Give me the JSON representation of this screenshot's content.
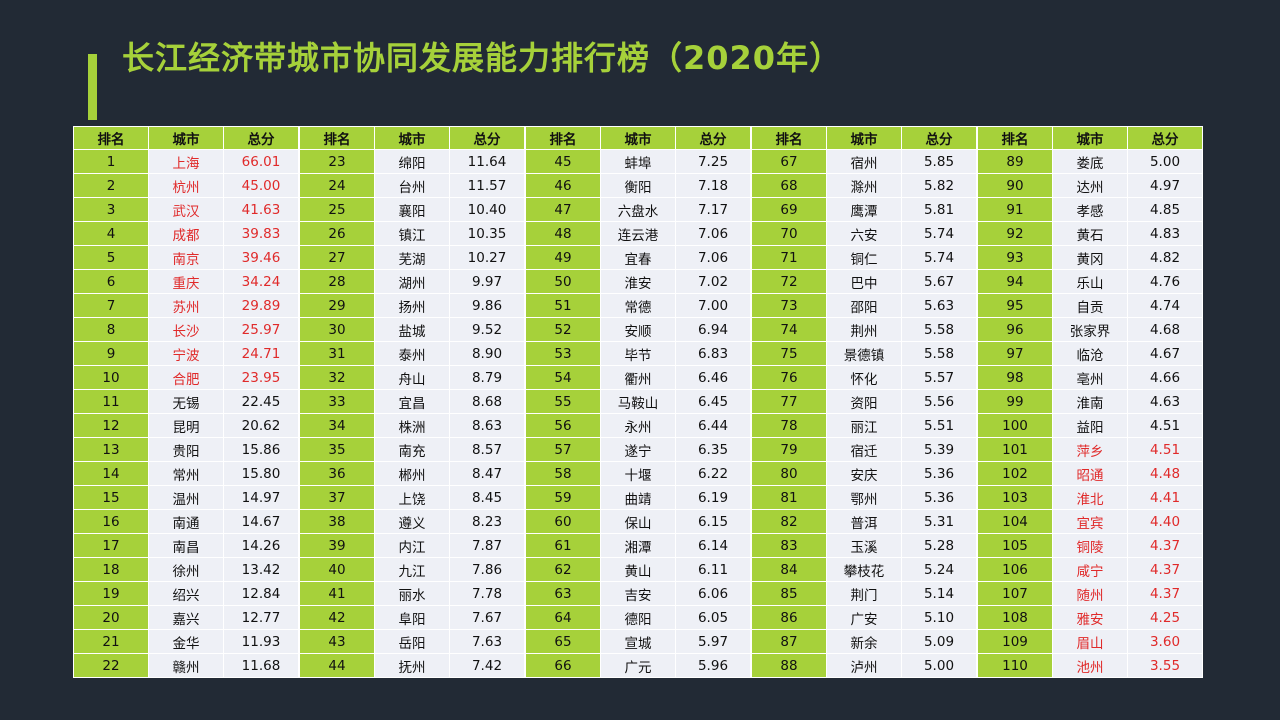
{
  "title": "长江经济带城市协同发展能力排行榜（2020年）",
  "colors": {
    "accent": "#a6d13a",
    "background": "#222a35",
    "highlight": "#e02a2a",
    "cell": "#eef0f6"
  },
  "headers": [
    "排名",
    "城市",
    "总分"
  ],
  "groups": [
    [
      {
        "rank": "1",
        "city": "上海",
        "score": "66.01",
        "hl": true
      },
      {
        "rank": "2",
        "city": "杭州",
        "score": "45.00",
        "hl": true
      },
      {
        "rank": "3",
        "city": "武汉",
        "score": "41.63",
        "hl": true
      },
      {
        "rank": "4",
        "city": "成都",
        "score": "39.83",
        "hl": true
      },
      {
        "rank": "5",
        "city": "南京",
        "score": "39.46",
        "hl": true
      },
      {
        "rank": "6",
        "city": "重庆",
        "score": "34.24",
        "hl": true
      },
      {
        "rank": "7",
        "city": "苏州",
        "score": "29.89",
        "hl": true
      },
      {
        "rank": "8",
        "city": "长沙",
        "score": "25.97",
        "hl": true
      },
      {
        "rank": "9",
        "city": "宁波",
        "score": "24.71",
        "hl": true
      },
      {
        "rank": "10",
        "city": "合肥",
        "score": "23.95",
        "hl": true
      },
      {
        "rank": "11",
        "city": "无锡",
        "score": "22.45"
      },
      {
        "rank": "12",
        "city": "昆明",
        "score": "20.62"
      },
      {
        "rank": "13",
        "city": "贵阳",
        "score": "15.86"
      },
      {
        "rank": "14",
        "city": "常州",
        "score": "15.80"
      },
      {
        "rank": "15",
        "city": "温州",
        "score": "14.97"
      },
      {
        "rank": "16",
        "city": "南通",
        "score": "14.67"
      },
      {
        "rank": "17",
        "city": "南昌",
        "score": "14.26"
      },
      {
        "rank": "18",
        "city": "徐州",
        "score": "13.42"
      },
      {
        "rank": "19",
        "city": "绍兴",
        "score": "12.84"
      },
      {
        "rank": "20",
        "city": "嘉兴",
        "score": "12.77"
      },
      {
        "rank": "21",
        "city": "金华",
        "score": "11.93"
      },
      {
        "rank": "22",
        "city": "赣州",
        "score": "11.68"
      }
    ],
    [
      {
        "rank": "23",
        "city": "绵阳",
        "score": "11.64"
      },
      {
        "rank": "24",
        "city": "台州",
        "score": "11.57"
      },
      {
        "rank": "25",
        "city": "襄阳",
        "score": "10.40"
      },
      {
        "rank": "26",
        "city": "镇江",
        "score": "10.35"
      },
      {
        "rank": "27",
        "city": "芜湖",
        "score": "10.27"
      },
      {
        "rank": "28",
        "city": "湖州",
        "score": "9.97"
      },
      {
        "rank": "29",
        "city": "扬州",
        "score": "9.86"
      },
      {
        "rank": "30",
        "city": "盐城",
        "score": "9.52"
      },
      {
        "rank": "31",
        "city": "泰州",
        "score": "8.90"
      },
      {
        "rank": "32",
        "city": "舟山",
        "score": "8.79"
      },
      {
        "rank": "33",
        "city": "宜昌",
        "score": "8.68"
      },
      {
        "rank": "34",
        "city": "株洲",
        "score": "8.63"
      },
      {
        "rank": "35",
        "city": "南充",
        "score": "8.57"
      },
      {
        "rank": "36",
        "city": "郴州",
        "score": "8.47"
      },
      {
        "rank": "37",
        "city": "上饶",
        "score": "8.45"
      },
      {
        "rank": "38",
        "city": "遵义",
        "score": "8.23"
      },
      {
        "rank": "39",
        "city": "内江",
        "score": "7.87"
      },
      {
        "rank": "40",
        "city": "九江",
        "score": "7.86"
      },
      {
        "rank": "41",
        "city": "丽水",
        "score": "7.78"
      },
      {
        "rank": "42",
        "city": "阜阳",
        "score": "7.67"
      },
      {
        "rank": "43",
        "city": "岳阳",
        "score": "7.63"
      },
      {
        "rank": "44",
        "city": "抚州",
        "score": "7.42"
      }
    ],
    [
      {
        "rank": "45",
        "city": "蚌埠",
        "score": "7.25"
      },
      {
        "rank": "46",
        "city": "衡阳",
        "score": "7.18"
      },
      {
        "rank": "47",
        "city": "六盘水",
        "score": "7.17"
      },
      {
        "rank": "48",
        "city": "连云港",
        "score": "7.06"
      },
      {
        "rank": "49",
        "city": "宜春",
        "score": "7.06"
      },
      {
        "rank": "50",
        "city": "淮安",
        "score": "7.02"
      },
      {
        "rank": "51",
        "city": "常德",
        "score": "7.00"
      },
      {
        "rank": "52",
        "city": "安顺",
        "score": "6.94"
      },
      {
        "rank": "53",
        "city": "毕节",
        "score": "6.83"
      },
      {
        "rank": "54",
        "city": "衢州",
        "score": "6.46"
      },
      {
        "rank": "55",
        "city": "马鞍山",
        "score": "6.45"
      },
      {
        "rank": "56",
        "city": "永州",
        "score": "6.44"
      },
      {
        "rank": "57",
        "city": "遂宁",
        "score": "6.35"
      },
      {
        "rank": "58",
        "city": "十堰",
        "score": "6.22"
      },
      {
        "rank": "59",
        "city": "曲靖",
        "score": "6.19"
      },
      {
        "rank": "60",
        "city": "保山",
        "score": "6.15"
      },
      {
        "rank": "61",
        "city": "湘潭",
        "score": "6.14"
      },
      {
        "rank": "62",
        "city": "黄山",
        "score": "6.11"
      },
      {
        "rank": "63",
        "city": "吉安",
        "score": "6.06"
      },
      {
        "rank": "64",
        "city": "德阳",
        "score": "6.05"
      },
      {
        "rank": "65",
        "city": "宣城",
        "score": "5.97"
      },
      {
        "rank": "66",
        "city": "广元",
        "score": "5.96"
      }
    ],
    [
      {
        "rank": "67",
        "city": "宿州",
        "score": "5.85"
      },
      {
        "rank": "68",
        "city": "滁州",
        "score": "5.82"
      },
      {
        "rank": "69",
        "city": "鹰潭",
        "score": "5.81"
      },
      {
        "rank": "70",
        "city": "六安",
        "score": "5.74"
      },
      {
        "rank": "71",
        "city": "铜仁",
        "score": "5.74"
      },
      {
        "rank": "72",
        "city": "巴中",
        "score": "5.67"
      },
      {
        "rank": "73",
        "city": "邵阳",
        "score": "5.63"
      },
      {
        "rank": "74",
        "city": "荆州",
        "score": "5.58"
      },
      {
        "rank": "75",
        "city": "景德镇",
        "score": "5.58"
      },
      {
        "rank": "76",
        "city": "怀化",
        "score": "5.57"
      },
      {
        "rank": "77",
        "city": "资阳",
        "score": "5.56"
      },
      {
        "rank": "78",
        "city": "丽江",
        "score": "5.51"
      },
      {
        "rank": "79",
        "city": "宿迁",
        "score": "5.39"
      },
      {
        "rank": "80",
        "city": "安庆",
        "score": "5.36"
      },
      {
        "rank": "81",
        "city": "鄂州",
        "score": "5.36"
      },
      {
        "rank": "82",
        "city": "普洱",
        "score": "5.31"
      },
      {
        "rank": "83",
        "city": "玉溪",
        "score": "5.28"
      },
      {
        "rank": "84",
        "city": "攀枝花",
        "score": "5.24"
      },
      {
        "rank": "85",
        "city": "荆门",
        "score": "5.14"
      },
      {
        "rank": "86",
        "city": "广安",
        "score": "5.10"
      },
      {
        "rank": "87",
        "city": "新余",
        "score": "5.09"
      },
      {
        "rank": "88",
        "city": "泸州",
        "score": "5.00"
      }
    ],
    [
      {
        "rank": "89",
        "city": "娄底",
        "score": "5.00"
      },
      {
        "rank": "90",
        "city": "达州",
        "score": "4.97"
      },
      {
        "rank": "91",
        "city": "孝感",
        "score": "4.85"
      },
      {
        "rank": "92",
        "city": "黄石",
        "score": "4.83"
      },
      {
        "rank": "93",
        "city": "黄冈",
        "score": "4.82"
      },
      {
        "rank": "94",
        "city": "乐山",
        "score": "4.76"
      },
      {
        "rank": "95",
        "city": "自贡",
        "score": "4.74"
      },
      {
        "rank": "96",
        "city": "张家界",
        "score": "4.68"
      },
      {
        "rank": "97",
        "city": "临沧",
        "score": "4.67"
      },
      {
        "rank": "98",
        "city": "亳州",
        "score": "4.66"
      },
      {
        "rank": "99",
        "city": "淮南",
        "score": "4.63"
      },
      {
        "rank": "100",
        "city": "益阳",
        "score": "4.51"
      },
      {
        "rank": "101",
        "city": "萍乡",
        "score": "4.51",
        "hl": true
      },
      {
        "rank": "102",
        "city": "昭通",
        "score": "4.48",
        "hl": true
      },
      {
        "rank": "103",
        "city": "淮北",
        "score": "4.41",
        "hl": true
      },
      {
        "rank": "104",
        "city": "宜宾",
        "score": "4.40",
        "hl": true
      },
      {
        "rank": "105",
        "city": "铜陵",
        "score": "4.37",
        "hl": true
      },
      {
        "rank": "106",
        "city": "咸宁",
        "score": "4.37",
        "hl": true
      },
      {
        "rank": "107",
        "city": "随州",
        "score": "4.37",
        "hl": true
      },
      {
        "rank": "108",
        "city": "雅安",
        "score": "4.25",
        "hl": true
      },
      {
        "rank": "109",
        "city": "眉山",
        "score": "3.60",
        "hl": true
      },
      {
        "rank": "110",
        "city": "池州",
        "score": "3.55",
        "hl": true
      }
    ]
  ]
}
